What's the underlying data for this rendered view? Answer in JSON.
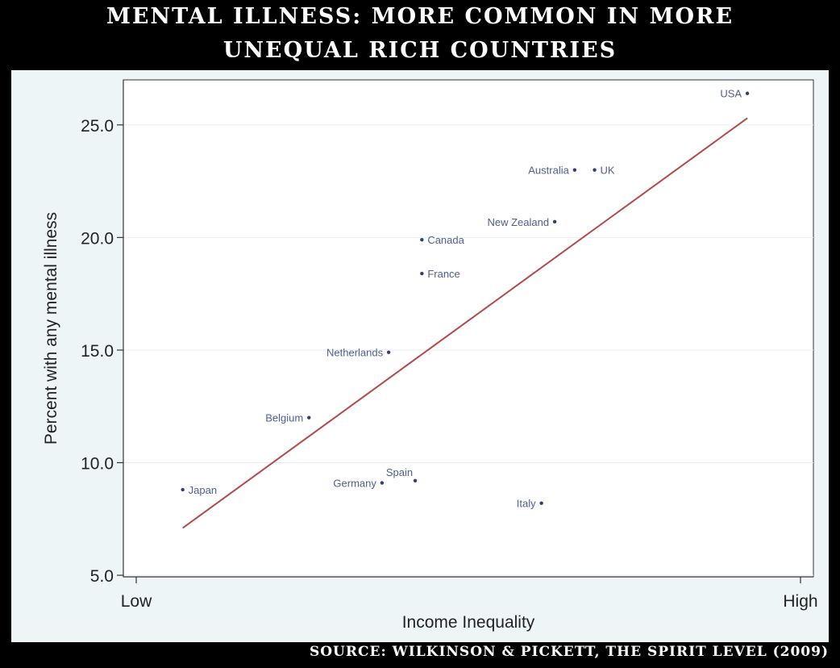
{
  "title_line1": "MENTAL ILLNESS: MORE COMMON IN MORE",
  "title_line2": "UNEQUAL RICH COUNTRIES",
  "source": "SOURCE: WILKINSON & PICKETT, THE SPIRIT LEVEL (2009)",
  "colors": {
    "background": "#000000",
    "plot_area": "#eef5f7",
    "plot_inner": "#ffffff",
    "points": "#2e3f78",
    "labels": "#4e5f8e",
    "fit_line": "#b24a4a",
    "axis": "#333333"
  },
  "chart_data": {
    "type": "scatter",
    "xlabel": "Income Inequality",
    "ylabel": "Percent with any mental illness",
    "x_tick_labels": [
      "Low",
      "High"
    ],
    "xlim": [
      0,
      100
    ],
    "ylim": [
      4.5,
      27
    ],
    "yticks": [
      5,
      10,
      15,
      20,
      25
    ],
    "y_tick_labels": [
      "5.0",
      "10.0",
      "15.0",
      "20.0",
      "25.0"
    ],
    "grid": "horizontal",
    "points": [
      {
        "label": "USA",
        "x": 92,
        "y": 26.4,
        "label_side": "left"
      },
      {
        "label": "Australia",
        "x": 66,
        "y": 23.0,
        "label_side": "left"
      },
      {
        "label": "UK",
        "x": 69,
        "y": 23.0,
        "label_side": "right"
      },
      {
        "label": "New Zealand",
        "x": 63,
        "y": 20.7,
        "label_side": "left"
      },
      {
        "label": "Canada",
        "x": 43,
        "y": 19.9,
        "label_side": "right"
      },
      {
        "label": "France",
        "x": 43,
        "y": 18.4,
        "label_side": "right"
      },
      {
        "label": "Netherlands",
        "x": 38,
        "y": 14.9,
        "label_side": "left"
      },
      {
        "label": "Belgium",
        "x": 26,
        "y": 12.0,
        "label_side": "left"
      },
      {
        "label": "Japan",
        "x": 7,
        "y": 8.8,
        "label_side": "right"
      },
      {
        "label": "Germany",
        "x": 37,
        "y": 9.1,
        "label_side": "left"
      },
      {
        "label": "Spain",
        "x": 42,
        "y": 9.2,
        "label_side": "above-left"
      },
      {
        "label": "Italy",
        "x": 61,
        "y": 8.2,
        "label_side": "left"
      }
    ],
    "fit_line": [
      {
        "x": 7,
        "y": 7.1
      },
      {
        "x": 92,
        "y": 25.3
      }
    ]
  }
}
